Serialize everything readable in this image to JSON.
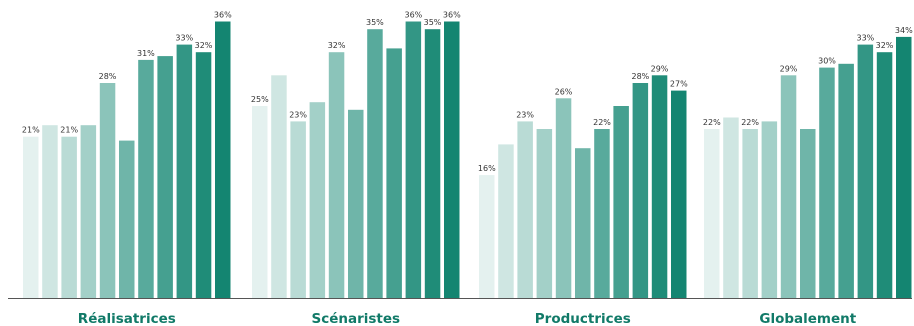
{
  "chart_data": {
    "type": "bar",
    "categories": [
      "Réalisatrices",
      "Scénaristes",
      "Productrices",
      "Globalement"
    ],
    "ylim": [
      0,
      37.5
    ],
    "grid": false,
    "legend": "none",
    "xlabel": "",
    "ylabel": "",
    "title": "",
    "colors": [
      "#E4F1EF",
      "#CFE6E2",
      "#B9DBD5",
      "#A3D0C8",
      "#8BC4BA",
      "#6FB5A9",
      "#58AA9C",
      "#45A090",
      "#339685",
      "#1F8C78",
      "#148571",
      "#0A7D66"
    ],
    "bar_values": [
      [
        21,
        22.5,
        21,
        22.5,
        28,
        20.5,
        31,
        31.5,
        33,
        32,
        36
      ],
      [
        25,
        29,
        23,
        25.5,
        32,
        24.5,
        35,
        32.5,
        36,
        35,
        36
      ],
      [
        16,
        20,
        23,
        22,
        26,
        19.5,
        22,
        25,
        28,
        29,
        27
      ],
      [
        22,
        23.5,
        22,
        23,
        29,
        22,
        30,
        30.5,
        33,
        32,
        34
      ]
    ],
    "data_labels": [
      [
        "21%",
        "",
        "21%",
        "",
        "28%",
        "",
        "31%",
        "",
        "33%",
        "32%",
        "36%"
      ],
      [
        "25%",
        "",
        "23%",
        "",
        "32%",
        "",
        "35%",
        "",
        "36%",
        "35%",
        "36%"
      ],
      [
        "16%",
        "",
        "23%",
        "",
        "26%",
        "",
        "22%",
        "",
        "28%",
        "29%",
        "27%"
      ],
      [
        "22%",
        "",
        "22%",
        "",
        "29%",
        "",
        "30%",
        "",
        "33%",
        "32%",
        "34%"
      ]
    ]
  }
}
